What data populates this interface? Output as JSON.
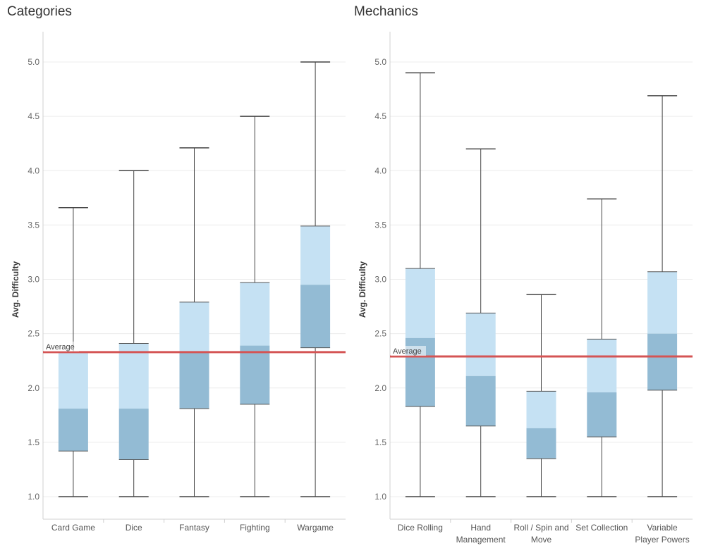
{
  "chart_data": [
    {
      "type": "boxplot",
      "title": "Categories",
      "ylabel": "Avg. Difficulty",
      "ylim": [
        0.9,
        5.25
      ],
      "yticks": [
        "1.0",
        "1.5",
        "2.0",
        "2.5",
        "3.0",
        "3.5",
        "4.0",
        "4.5",
        "5.0"
      ],
      "reference_line": {
        "label": "Average",
        "value": 2.33,
        "color": "#d45454"
      },
      "colors": {
        "upper_box": "#c5e1f3",
        "lower_box": "#93bbd4",
        "whisker": "#444444",
        "grid": "#ececec"
      },
      "boxes": [
        {
          "label": [
            "Card Game"
          ],
          "min": 1.0,
          "q1": 1.42,
          "median": 1.81,
          "q3": 2.33,
          "max": 3.66
        },
        {
          "label": [
            "Dice"
          ],
          "min": 1.0,
          "q1": 1.34,
          "median": 1.81,
          "q3": 2.41,
          "max": 4.0
        },
        {
          "label": [
            "Fantasy"
          ],
          "min": 1.0,
          "q1": 1.81,
          "median": 2.33,
          "q3": 2.79,
          "max": 4.21
        },
        {
          "label": [
            "Fighting"
          ],
          "min": 1.0,
          "q1": 1.85,
          "median": 2.39,
          "q3": 2.97,
          "max": 4.5
        },
        {
          "label": [
            "Wargame"
          ],
          "min": 1.0,
          "q1": 2.37,
          "median": 2.95,
          "q3": 3.49,
          "max": 5.0
        }
      ]
    },
    {
      "type": "boxplot",
      "title": "Mechanics",
      "ylabel": "Avg. Difficulty",
      "ylim": [
        0.9,
        5.25
      ],
      "yticks": [
        "1.0",
        "1.5",
        "2.0",
        "2.5",
        "3.0",
        "3.5",
        "4.0",
        "4.5",
        "5.0"
      ],
      "reference_line": {
        "label": "Average",
        "value": 2.29,
        "color": "#d45454"
      },
      "colors": {
        "upper_box": "#c5e1f3",
        "lower_box": "#93bbd4",
        "whisker": "#444444",
        "grid": "#ececec"
      },
      "boxes": [
        {
          "label": [
            "Dice Rolling"
          ],
          "min": 1.0,
          "q1": 1.83,
          "median": 2.46,
          "q3": 3.1,
          "max": 4.9
        },
        {
          "label": [
            "Hand",
            "Management"
          ],
          "min": 1.0,
          "q1": 1.65,
          "median": 2.11,
          "q3": 2.69,
          "max": 4.2
        },
        {
          "label": [
            "Roll / Spin and",
            "Move"
          ],
          "min": 1.0,
          "q1": 1.35,
          "median": 1.63,
          "q3": 1.97,
          "max": 2.86
        },
        {
          "label": [
            "Set Collection"
          ],
          "min": 1.0,
          "q1": 1.55,
          "median": 1.96,
          "q3": 2.45,
          "max": 3.74
        },
        {
          "label": [
            "Variable",
            "Player Powers"
          ],
          "min": 1.0,
          "q1": 1.98,
          "median": 2.5,
          "q3": 3.07,
          "max": 4.69
        }
      ]
    }
  ]
}
